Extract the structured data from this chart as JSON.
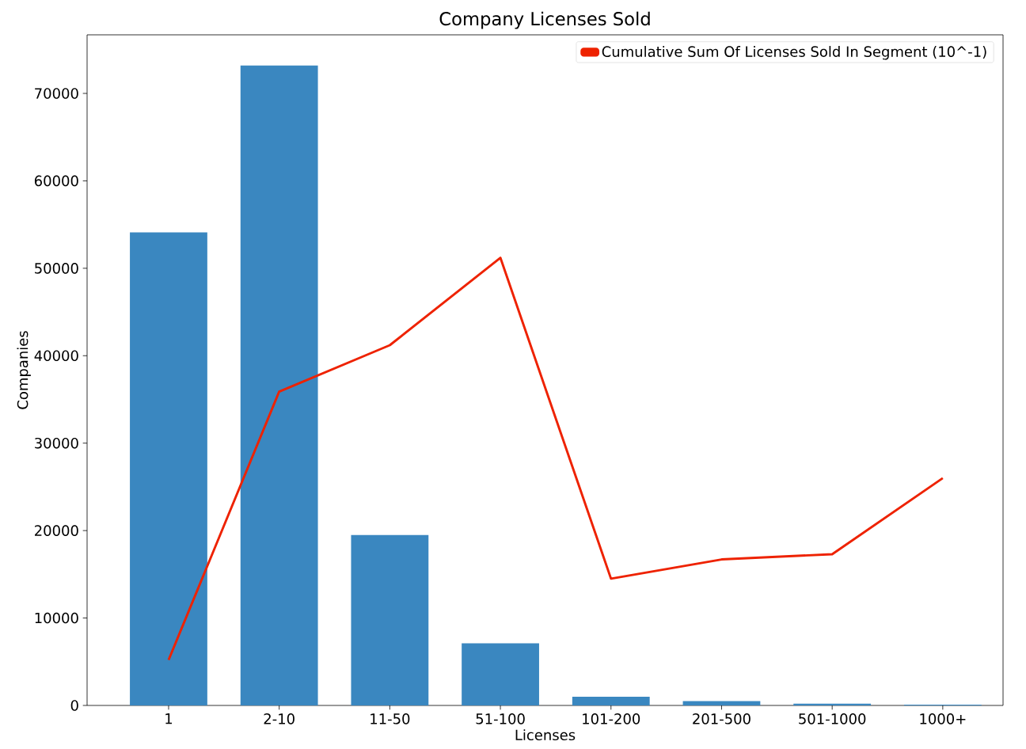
{
  "chart_data": {
    "type": "bar",
    "title": "Company Licenses Sold",
    "xlabel": "Licenses",
    "ylabel": "Companies",
    "categories": [
      "1",
      "2-10",
      "11-50",
      "51-100",
      "101-200",
      "201-500",
      "501-1000",
      "1000+"
    ],
    "series": [
      {
        "color": "#3a87c0",
        "values": [
          54100,
          73200,
          19500,
          7100,
          1000,
          500,
          200,
          100
        ]
      },
      {
        "type": "line",
        "name": "Cumulative Sum Of Licenses Sold In Segment (10^-1)",
        "color": "#ee2200",
        "values": [
          5200,
          35900,
          41200,
          51200,
          14500,
          16700,
          17300,
          26000
        ]
      }
    ],
    "ylim": [
      0,
      76700
    ],
    "yticks": [
      0,
      10000,
      20000,
      30000,
      40000,
      50000,
      60000,
      70000
    ],
    "legend": "top right"
  }
}
